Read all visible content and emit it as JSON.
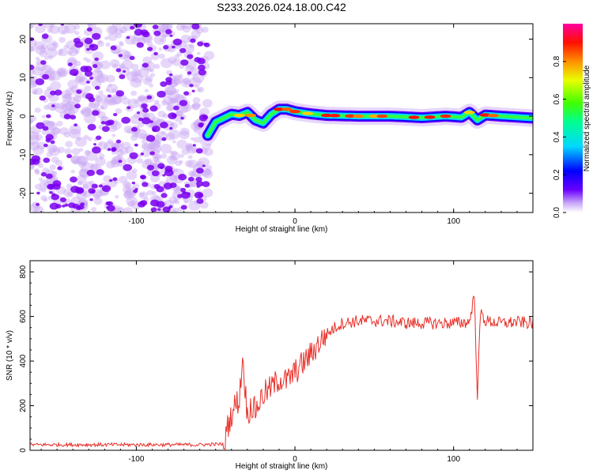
{
  "figure": {
    "title": "S233.2026.024.18.00.C42"
  },
  "colors": {
    "background": "#ffffff",
    "axis": "#000000",
    "snr_line": "#e8302a",
    "noise_purple": "#7a00f0"
  },
  "chart_data": [
    {
      "type": "heatmap",
      "title": "S233.2026.024.18.00.C42",
      "xlabel": "Height of straight line (km)",
      "ylabel": "Frequency (Hz)",
      "xlim": [
        -167,
        150
      ],
      "ylim": [
        -25,
        24
      ],
      "xticks": [
        -100,
        0,
        100
      ],
      "yticks": [
        -20,
        -10,
        0,
        10,
        20
      ],
      "noise_region_x": [
        -167,
        -55
      ],
      "ridge": {
        "description_points_x": [
          -55,
          -50,
          -45,
          -40,
          -35,
          -30,
          -25,
          -20,
          -15,
          -10,
          -5,
          0,
          10,
          20,
          40,
          60,
          80,
          95,
          105,
          110,
          115,
          120,
          130,
          150
        ],
        "frequency_hz": [
          -5,
          -1.5,
          -0.5,
          0.5,
          0.2,
          1,
          -1,
          -1.8,
          0.5,
          1.8,
          1.8,
          1.2,
          0.6,
          0.2,
          0,
          0,
          -0.4,
          0,
          -0.3,
          1,
          -1,
          0.3,
          0,
          -0.5
        ]
      },
      "colorbar": {
        "label": "Normalized spectral amplitude",
        "range": [
          0,
          1
        ],
        "ticks": [
          0.0,
          0.2,
          0.4,
          0.6,
          0.8
        ],
        "tick_labels": [
          "0.0",
          "0.2",
          "0.4",
          "0.6",
          "0.8"
        ]
      }
    },
    {
      "type": "line",
      "xlabel": "Height of straight line (km)",
      "ylabel": "SNR (10 * v/v)",
      "xlim": [
        -167,
        150
      ],
      "ylim": [
        0,
        850
      ],
      "xticks": [
        -100,
        0,
        100
      ],
      "yticks": [
        0,
        200,
        400,
        600,
        800
      ],
      "series": [
        {
          "name": "SNR",
          "x": [
            -167,
            -150,
            -120,
            -90,
            -60,
            -45,
            -42,
            -38,
            -35,
            -33,
            -30,
            -28,
            -25,
            -20,
            -15,
            -10,
            -5,
            0,
            5,
            10,
            15,
            20,
            25,
            30,
            40,
            50,
            60,
            70,
            80,
            90,
            100,
            110,
            113,
            115,
            117,
            120,
            130,
            140,
            150
          ],
          "y": [
            25,
            25,
            25,
            25,
            25,
            28,
            120,
            200,
            230,
            420,
            150,
            200,
            180,
            250,
            280,
            320,
            310,
            350,
            390,
            430,
            480,
            520,
            550,
            570,
            580,
            580,
            580,
            570,
            570,
            570,
            570,
            575,
            700,
            250,
            620,
            580,
            570,
            575,
            570
          ]
        }
      ]
    }
  ]
}
